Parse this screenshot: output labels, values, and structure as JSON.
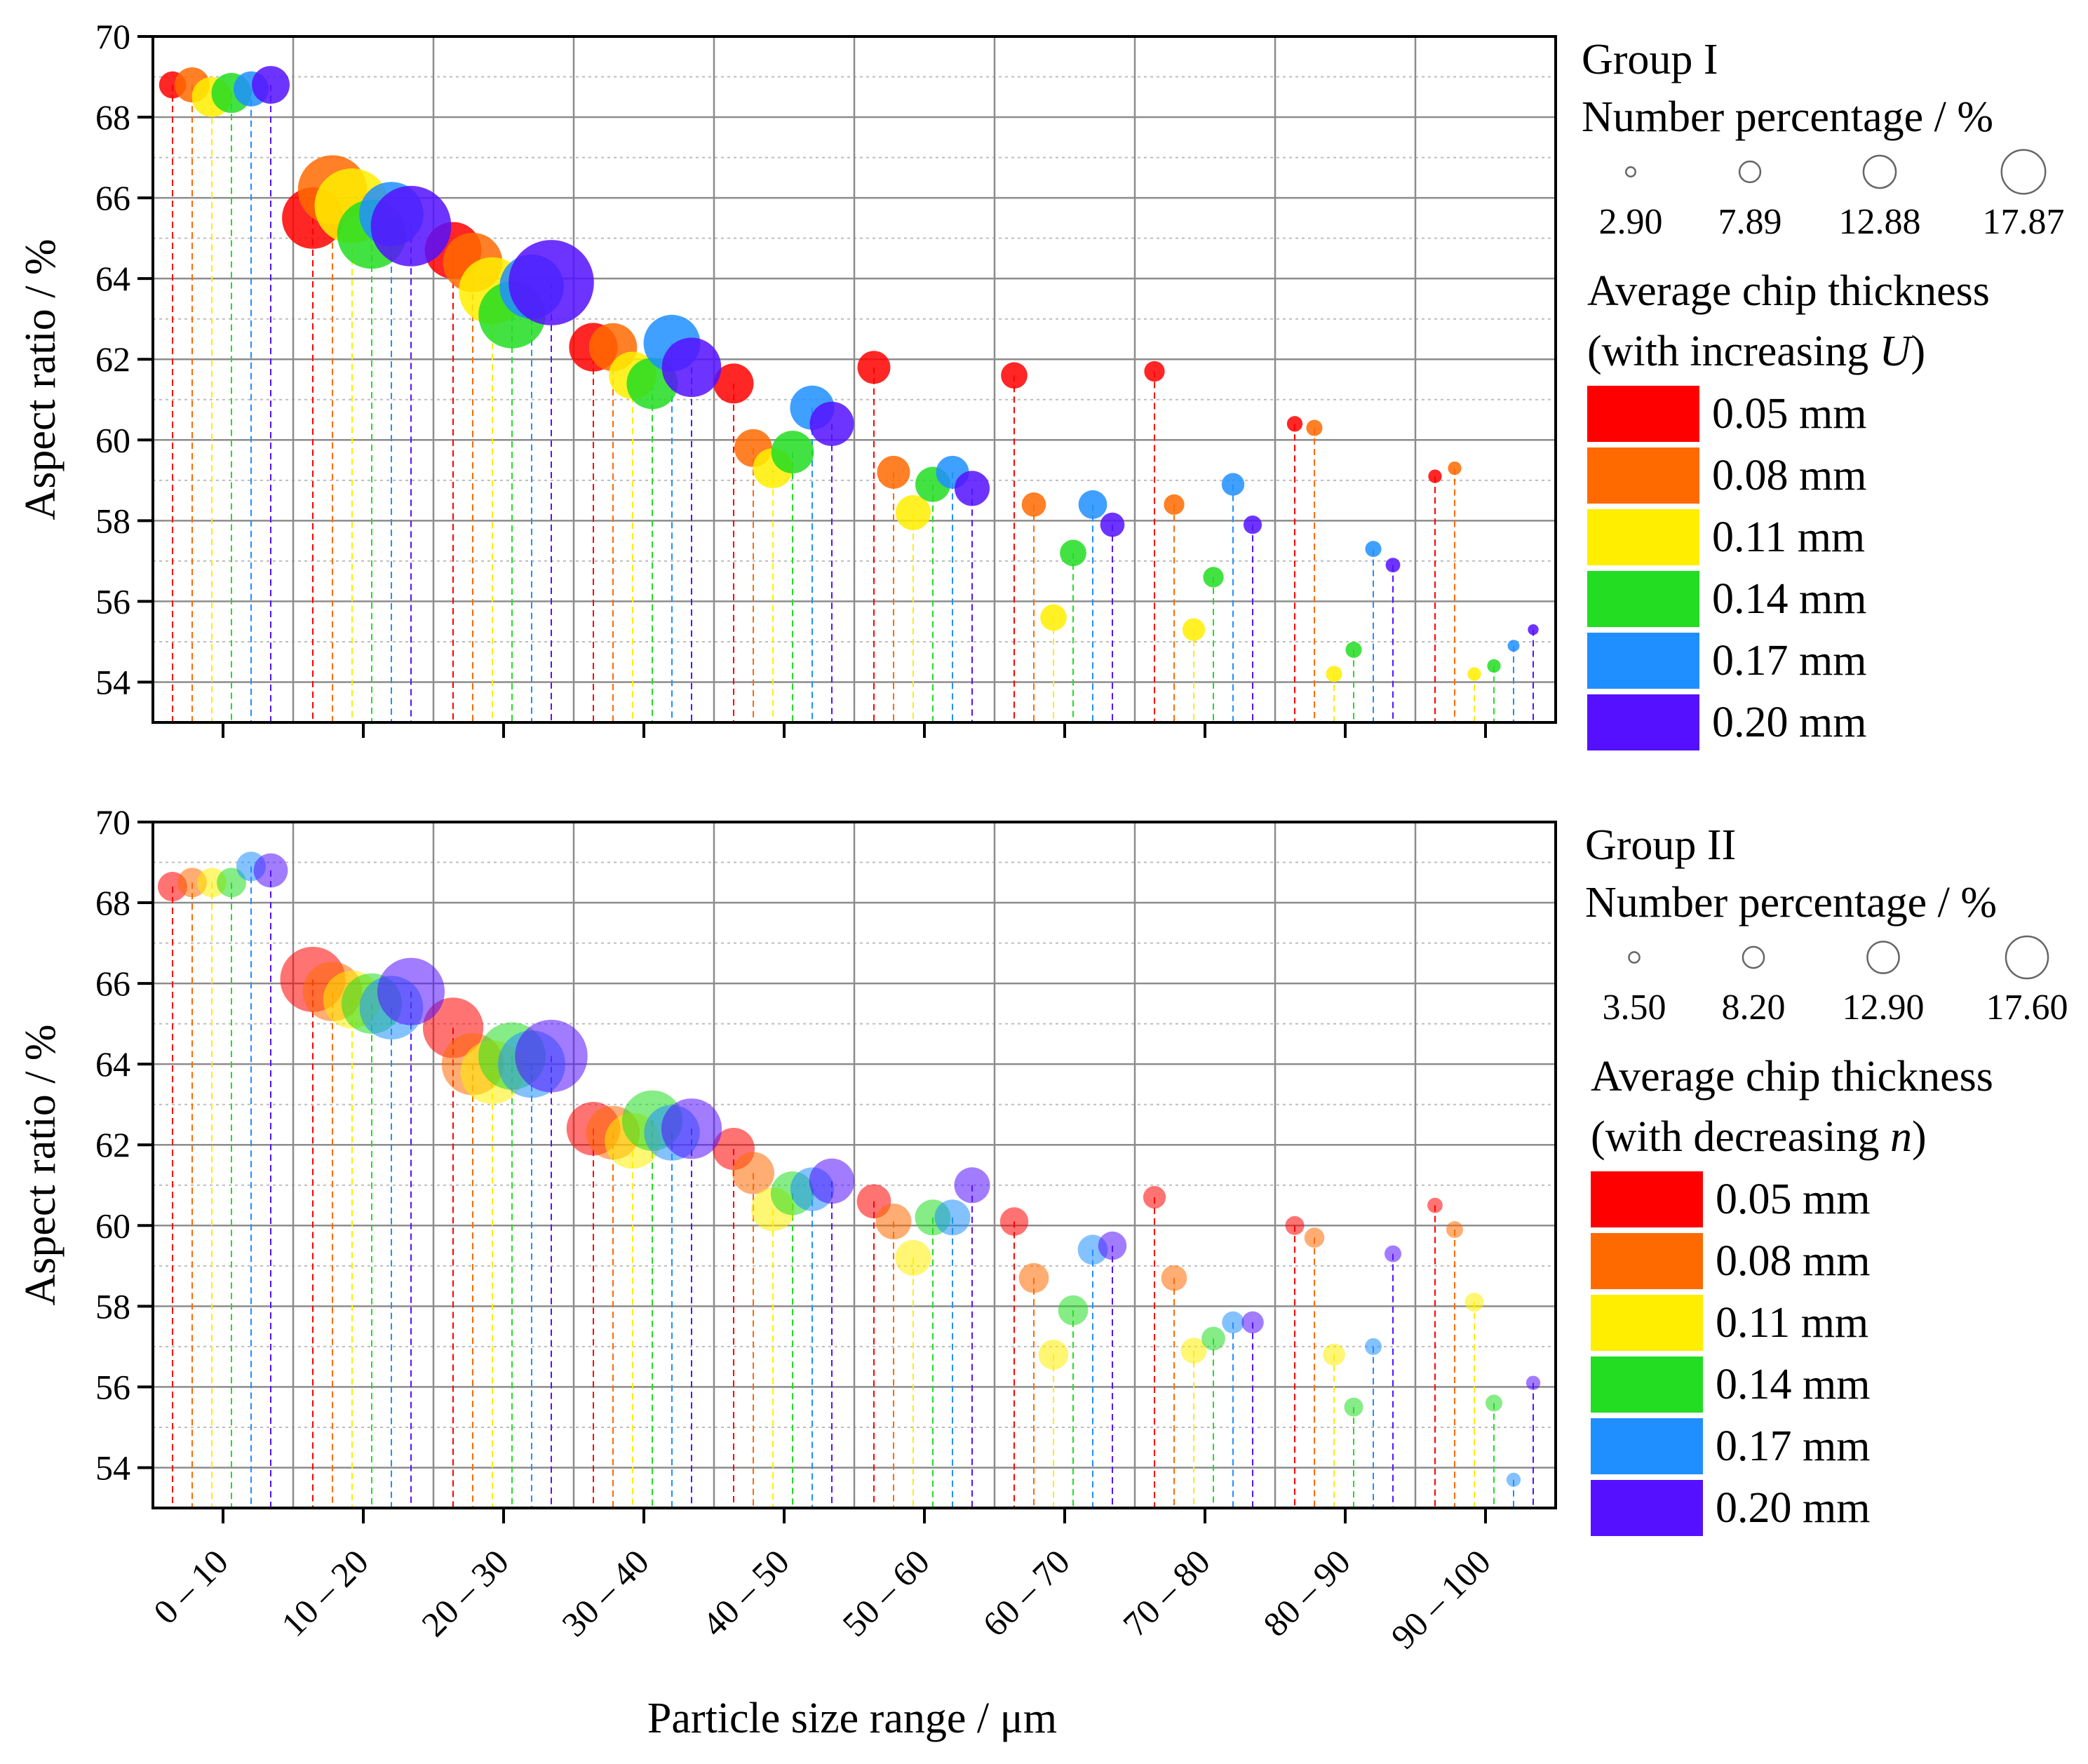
{
  "x_axis_label": "Particle size range / μm",
  "chart_data": [
    {
      "type": "bubble",
      "group": "Group I",
      "ylabel": "Aspect ratio / %",
      "ylim": [
        53,
        70
      ],
      "yticks": [
        54,
        56,
        58,
        60,
        62,
        64,
        66,
        68,
        70
      ],
      "categories": [
        "0 – 10",
        "10 – 20",
        "20 – 30",
        "30 – 40",
        "40 – 50",
        "50 – 60",
        "60 – 70",
        "70 – 80",
        "80 – 90",
        "90 – 100"
      ],
      "size_legend_title": "Number percentage / %",
      "size_legend": [
        "2.90",
        "7.89",
        "12.88",
        "17.87"
      ],
      "color_legend_title": "Average chip thickness",
      "color_legend_subtitle_prefix": "(with increasing ",
      "color_legend_subtitle_var": "U",
      "color_legend_subtitle_suffix": ")",
      "series": [
        {
          "name": "0.05 mm",
          "color": "#ff0000",
          "values": [
            68.8,
            65.5,
            64.7,
            62.3,
            61.4,
            61.8,
            61.6,
            61.7,
            60.4,
            59.1
          ],
          "sizes": [
            5.0,
            11.4,
            10.5,
            9.0,
            7.4,
            6.1,
            4.9,
            3.8,
            2.9,
            2.5
          ]
        },
        {
          "name": "0.08 mm",
          "color": "#ff6a00",
          "values": [
            68.8,
            66.2,
            64.4,
            62.3,
            59.8,
            59.2,
            58.4,
            58.4,
            60.3,
            59.3
          ],
          "sizes": [
            6.5,
            12.8,
            11.0,
            8.9,
            7.0,
            6.1,
            4.5,
            3.8,
            3.0,
            2.5
          ]
        },
        {
          "name": "0.11 mm",
          "color": "#ffee00",
          "values": [
            68.5,
            65.8,
            63.7,
            61.6,
            59.3,
            58.2,
            55.6,
            55.3,
            54.2,
            54.2
          ],
          "sizes": [
            7.4,
            13.9,
            12.4,
            8.8,
            7.4,
            6.5,
            4.9,
            4.2,
            3.0,
            2.5
          ]
        },
        {
          "name": "0.14 mm",
          "color": "#22dd22",
          "values": [
            68.6,
            65.1,
            63.1,
            61.4,
            59.7,
            58.9,
            57.2,
            56.6,
            54.8,
            54.4
          ],
          "sizes": [
            7.4,
            12.8,
            12.4,
            9.5,
            7.9,
            6.5,
            4.9,
            3.8,
            3.0,
            2.5
          ]
        },
        {
          "name": "0.17 mm",
          "color": "#1f8fff",
          "values": [
            68.7,
            65.6,
            63.8,
            62.4,
            60.8,
            59.2,
            58.4,
            58.9,
            57.3,
            54.9
          ],
          "sizes": [
            6.5,
            11.9,
            11.9,
            10.5,
            8.2,
            6.1,
            5.3,
            4.2,
            3.0,
            2.2
          ]
        },
        {
          "name": "0.20 mm",
          "color": "#5511ff",
          "values": [
            68.8,
            65.3,
            63.9,
            61.8,
            60.4,
            58.8,
            57.9,
            57.9,
            56.9,
            55.3
          ],
          "sizes": [
            7.0,
            14.9,
            15.8,
            11.0,
            8.2,
            6.5,
            4.5,
            3.4,
            2.7,
            2.0
          ]
        }
      ]
    },
    {
      "type": "bubble",
      "group": "Group II",
      "ylabel": "Aspect ratio / %",
      "ylim": [
        53,
        70
      ],
      "yticks": [
        54,
        56,
        58,
        60,
        62,
        64,
        66,
        68,
        70
      ],
      "categories": [
        "0 – 10",
        "10 – 20",
        "20 – 30",
        "30 – 40",
        "40 – 50",
        "50 – 60",
        "60 – 70",
        "70 – 80",
        "80 – 90",
        "90 – 100"
      ],
      "size_legend_title": "Number percentage / %",
      "size_legend": [
        "3.50",
        "8.20",
        "12.90",
        "17.60"
      ],
      "color_legend_title": "Average chip thickness",
      "color_legend_subtitle_prefix": "(with decreasing ",
      "color_legend_subtitle_var": "n",
      "color_legend_subtitle_suffix": ")",
      "series": [
        {
          "name": "0.05 mm",
          "color": "#ff0000",
          "values": [
            68.4,
            66.1,
            64.9,
            62.4,
            61.9,
            60.6,
            60.1,
            60.7,
            60.0,
            60.5
          ],
          "sizes": [
            5.6,
            12.4,
            11.5,
            10.2,
            8.0,
            6.5,
            5.4,
            4.3,
            3.6,
            2.9
          ]
        },
        {
          "name": "0.08 mm",
          "color": "#ff6a00",
          "values": [
            68.5,
            65.8,
            64.0,
            62.3,
            61.3,
            60.1,
            58.7,
            58.7,
            59.7,
            59.9
          ],
          "sizes": [
            5.6,
            11.3,
            11.8,
            10.2,
            8.0,
            6.8,
            5.7,
            4.9,
            3.8,
            3.2
          ]
        },
        {
          "name": "0.11 mm",
          "color": "#ffee00",
          "values": [
            68.5,
            65.6,
            63.8,
            62.1,
            60.4,
            59.2,
            56.8,
            56.9,
            56.8,
            58.1
          ],
          "sizes": [
            5.6,
            11.0,
            12.1,
            10.6,
            8.3,
            6.8,
            5.7,
            4.9,
            4.2,
            3.6
          ]
        },
        {
          "name": "0.14 mm",
          "color": "#22dd22",
          "values": [
            68.5,
            65.5,
            64.2,
            62.6,
            60.8,
            60.2,
            57.9,
            57.2,
            55.5,
            55.6
          ],
          "sizes": [
            5.6,
            11.5,
            12.8,
            11.5,
            8.3,
            6.8,
            5.7,
            4.5,
            3.6,
            3.2
          ]
        },
        {
          "name": "0.17 mm",
          "color": "#1f8fff",
          "values": [
            68.9,
            65.4,
            64.0,
            62.3,
            60.9,
            60.2,
            59.4,
            57.6,
            57.0,
            53.7
          ],
          "sizes": [
            5.6,
            12.1,
            12.8,
            10.6,
            8.3,
            6.8,
            5.7,
            4.2,
            3.2,
            2.7
          ]
        },
        {
          "name": "0.20 mm",
          "color": "#5511ff",
          "values": [
            68.8,
            65.8,
            64.2,
            62.4,
            61.1,
            61.0,
            59.5,
            57.6,
            59.3,
            56.1
          ],
          "sizes": [
            6.5,
            12.8,
            13.8,
            11.5,
            8.6,
            6.8,
            5.4,
            4.2,
            3.2,
            2.7
          ]
        }
      ]
    }
  ]
}
